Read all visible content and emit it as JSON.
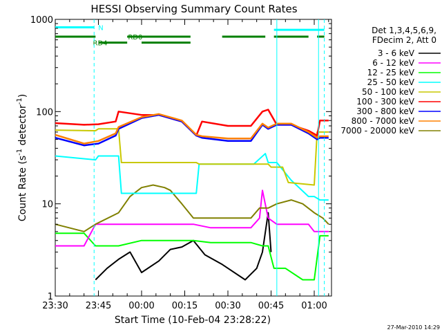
{
  "chart_data": {
    "type": "line",
    "title": "HESSI Observing Summary Count Rates",
    "xlabel": "Start Time (10-Feb-04 23:28:22)",
    "ylabel_main": "Count Rate (s",
    "ylabel_sup1": "-1",
    "ylabel_mid": " detector",
    "ylabel_sup2": "-1",
    "ylabel_end": ")",
    "yscale": "log",
    "xlim_minutes": [
      -30,
      66
    ],
    "ylim": [
      1,
      1000
    ],
    "x_ticks": [
      {
        "label": "23:30",
        "minutes": -30
      },
      {
        "label": "23:45",
        "minutes": -15
      },
      {
        "label": "00:00",
        "minutes": 0
      },
      {
        "label": "00:15",
        "minutes": 15
      },
      {
        "label": "00:30",
        "minutes": 30
      },
      {
        "label": "00:45",
        "minutes": 45
      },
      {
        "label": "01:00",
        "minutes": 60
      }
    ],
    "y_ticks": [
      {
        "label": "1",
        "value": 1
      },
      {
        "label": "10",
        "value": 10
      },
      {
        "label": "100",
        "value": 100
      },
      {
        "label": "1000",
        "value": 1000
      }
    ],
    "legend_header": [
      "Det 1,3,4,5,6,9,",
      "FDecim 2, Att 0"
    ],
    "legend_position": "right",
    "series": [
      {
        "name": "3 - 6 keV",
        "color": "#000000"
      },
      {
        "name": "6 - 12 keV",
        "color": "#ff00ff"
      },
      {
        "name": "12 - 25 keV",
        "color": "#00ff00"
      },
      {
        "name": "25 - 50 keV",
        "color": "#00ffff"
      },
      {
        "name": "50 - 100 keV",
        "color": "#c8c800"
      },
      {
        "name": "100 - 300 keV",
        "color": "#ff0000"
      },
      {
        "name": "300 - 800 keV",
        "color": "#0000ff"
      },
      {
        "name": "800 - 7000 keV",
        "color": "#ff8000"
      },
      {
        "name": "7000 - 20000 keV",
        "color": "#808000"
      }
    ],
    "series_data": {
      "red": {
        "x": [
          -30,
          -20,
          -15,
          -9,
          -8,
          0,
          6,
          14,
          19,
          21,
          30,
          38,
          42,
          44,
          47,
          52,
          58,
          61,
          62,
          65
        ],
        "y": [
          75,
          72,
          73,
          78,
          100,
          92,
          92,
          78,
          55,
          78,
          70,
          70,
          100,
          105,
          72,
          72,
          62,
          55,
          80,
          80
        ]
      },
      "blue": {
        "x": [
          -30,
          -20,
          -15,
          -9,
          -8,
          0,
          6,
          14,
          19,
          21,
          30,
          38,
          42,
          44,
          47,
          52,
          58,
          61,
          62,
          65
        ],
        "y": [
          52,
          43,
          45,
          55,
          65,
          85,
          92,
          78,
          55,
          52,
          48,
          48,
          72,
          65,
          72,
          72,
          58,
          50,
          52,
          52
        ]
      },
      "orange": {
        "x": [
          -30,
          -20,
          -15,
          -9,
          -8,
          0,
          6,
          14,
          19,
          21,
          30,
          38,
          42,
          44,
          47,
          52,
          58,
          61,
          62,
          65
        ],
        "y": [
          56,
          45,
          48,
          58,
          68,
          87,
          94,
          80,
          56,
          54,
          51,
          51,
          74,
          67,
          74,
          74,
          60,
          52,
          54,
          54
        ]
      },
      "yellow": {
        "x": [
          -30,
          -16,
          -15,
          -8,
          -7,
          19,
          20,
          44,
          45,
          49,
          51,
          60,
          61,
          63,
          65
        ],
        "y": [
          63,
          62,
          65,
          65,
          28,
          28,
          27,
          27,
          25,
          25,
          17,
          16,
          60,
          60,
          60
        ]
      },
      "cyan": {
        "x": [
          -30,
          -16,
          -15,
          -8,
          -7,
          19,
          20,
          39,
          43,
          44,
          47,
          52,
          58,
          60,
          62,
          65
        ],
        "y": [
          33,
          30,
          33,
          33,
          13,
          13,
          27,
          27,
          35,
          28,
          28,
          18,
          12,
          12,
          11,
          11
        ]
      },
      "olive": {
        "x": [
          -30,
          -20,
          -16,
          -8,
          -4,
          0,
          4,
          8,
          10,
          14,
          18,
          24,
          38,
          41,
          44,
          47,
          52,
          56,
          60,
          63,
          65
        ],
        "y": [
          6,
          5,
          6,
          8,
          12,
          15,
          16,
          15,
          14,
          10,
          7,
          7,
          7,
          9,
          9,
          10,
          11,
          10,
          8,
          7,
          6
        ]
      },
      "magenta": {
        "x": [
          -30,
          -20,
          -16,
          -8,
          0,
          8,
          14,
          18,
          24,
          38,
          41,
          42,
          44,
          47,
          52,
          58,
          60,
          65
        ],
        "y": [
          3.5,
          3.5,
          6,
          6,
          6,
          6,
          6,
          6,
          5.5,
          5.5,
          7,
          14,
          7,
          6,
          6,
          6,
          5,
          5
        ]
      },
      "green": {
        "x": [
          -30,
          -20,
          -16,
          -8,
          0,
          8,
          14,
          18,
          24,
          38,
          42,
          44,
          46,
          50,
          56,
          60,
          62,
          65
        ],
        "y": [
          4.8,
          4.8,
          3.5,
          3.5,
          4,
          4,
          4,
          4,
          3.8,
          3.8,
          3.5,
          3.5,
          2,
          2,
          1.5,
          1.5,
          4.5,
          4.5
        ]
      },
      "black": {
        "x": [
          -16,
          -12,
          -8,
          -4,
          0,
          6,
          10,
          14,
          18,
          22,
          28,
          36,
          40,
          42,
          44,
          45
        ],
        "y": [
          1.5,
          2,
          2.5,
          3,
          1.8,
          2.4,
          3.2,
          3.4,
          4.0,
          2.8,
          2.2,
          1.5,
          2.0,
          3.0,
          8.0,
          3.0
        ]
      }
    },
    "annotations": [
      {
        "label": "N",
        "x_start": -30,
        "x_end": -16.5,
        "value": 820,
        "color": "#00ffff"
      },
      {
        "label": "",
        "x_start": 46,
        "x_end": 63.5,
        "value": 770,
        "color": "#00ffff"
      },
      {
        "label": "RD0",
        "x_start": -30,
        "x_end": -16,
        "value": 650,
        "color": "#007f00"
      },
      {
        "label": "",
        "x_start": -5,
        "x_end": 17,
        "value": 650,
        "color": "#007f00"
      },
      {
        "label": "",
        "x_start": 28,
        "x_end": 43,
        "value": 650,
        "color": "#007f00"
      },
      {
        "label": "",
        "x_start": 46,
        "x_end": 58,
        "value": 650,
        "color": "#007f00"
      },
      {
        "label": "",
        "x_start": 61,
        "x_end": 63.5,
        "value": 650,
        "color": "#007f00"
      },
      {
        "label": "RD4",
        "x_start": -15,
        "x_end": -5,
        "value": 560,
        "color": "#007f00"
      },
      {
        "label": "",
        "x_start": 0,
        "x_end": 17,
        "value": 560,
        "color": "#007f00"
      }
    ],
    "vlines_solid": [
      47,
      61.5
    ],
    "vlines_dashed": [
      -16.5,
      63.5
    ],
    "grid": false,
    "footer": "27-Mar-2010 14:29"
  }
}
